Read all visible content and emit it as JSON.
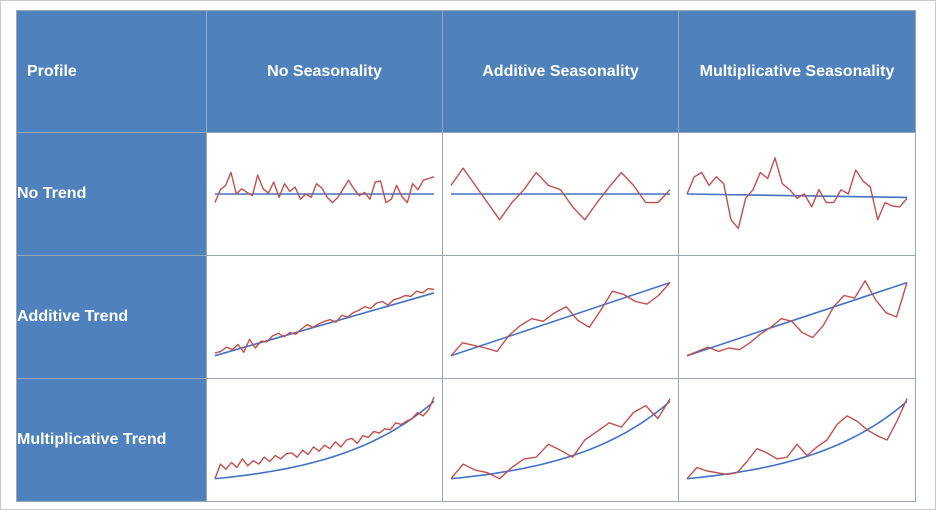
{
  "header": {
    "profile": "Profile",
    "columns": [
      "No Seasonality",
      "Additive Seasonality",
      "Multiplicative Seasonality"
    ]
  },
  "rows": [
    "No Trend",
    "Additive Trend",
    "Multiplicative Trend"
  ],
  "colors": {
    "header_bg": "#4f81bd",
    "trend_line": "#4472c4",
    "series_line": "#c0504d"
  },
  "chart_data": {
    "type": "line",
    "grid": false,
    "panels": [
      {
        "trend": "none",
        "seasonality": "none",
        "baseline": [
          0.5,
          0.5
        ],
        "values": [
          0.4,
          0.55,
          0.6,
          0.75,
          0.5,
          0.56,
          0.52,
          0.48,
          0.72,
          0.56,
          0.51,
          0.64,
          0.46,
          0.62,
          0.53,
          0.58,
          0.44,
          0.5,
          0.46,
          0.62,
          0.57,
          0.46,
          0.4,
          0.46,
          0.56,
          0.66,
          0.56,
          0.48,
          0.52,
          0.44,
          0.64,
          0.65,
          0.4,
          0.44,
          0.6,
          0.47,
          0.4,
          0.62,
          0.55,
          0.66,
          0.68,
          0.7
        ]
      },
      {
        "trend": "none",
        "seasonality": "additive",
        "baseline": [
          0.5,
          0.5
        ],
        "values": [
          0.6,
          0.8,
          0.6,
          0.4,
          0.2,
          0.4,
          0.55,
          0.75,
          0.6,
          0.55,
          0.35,
          0.2,
          0.4,
          0.58,
          0.75,
          0.6,
          0.4,
          0.4,
          0.55
        ]
      },
      {
        "trend": "none",
        "seasonality": "multiplicative",
        "baseline": [
          0.5,
          0.46
        ],
        "values": [
          0.5,
          0.7,
          0.75,
          0.6,
          0.7,
          0.62,
          0.2,
          0.1,
          0.45,
          0.55,
          0.75,
          0.68,
          0.92,
          0.62,
          0.55,
          0.45,
          0.5,
          0.35,
          0.55,
          0.4,
          0.4,
          0.55,
          0.5,
          0.78,
          0.65,
          0.58,
          0.2,
          0.4,
          0.36,
          0.35,
          0.45
        ]
      },
      {
        "trend": "additive",
        "seasonality": "none",
        "baseline": [
          0.05,
          0.78
        ],
        "values": [
          0.08,
          0.1,
          0.15,
          0.12,
          0.18,
          0.09,
          0.24,
          0.14,
          0.22,
          0.21,
          0.28,
          0.31,
          0.27,
          0.32,
          0.3,
          0.36,
          0.41,
          0.38,
          0.42,
          0.45,
          0.47,
          0.44,
          0.52,
          0.5,
          0.55,
          0.58,
          0.62,
          0.6,
          0.66,
          0.68,
          0.64,
          0.7,
          0.72,
          0.75,
          0.74,
          0.8,
          0.78,
          0.83,
          0.82
        ]
      },
      {
        "trend": "additive",
        "seasonality": "additive",
        "baseline": [
          0.05,
          0.9
        ],
        "values": [
          0.05,
          0.2,
          0.17,
          0.14,
          0.1,
          0.28,
          0.4,
          0.48,
          0.45,
          0.55,
          0.62,
          0.46,
          0.38,
          0.58,
          0.8,
          0.76,
          0.68,
          0.65,
          0.75,
          0.9
        ]
      },
      {
        "trend": "additive",
        "seasonality": "multiplicative",
        "baseline": [
          0.05,
          0.9
        ],
        "values": [
          0.05,
          0.1,
          0.15,
          0.1,
          0.14,
          0.12,
          0.2,
          0.3,
          0.38,
          0.48,
          0.45,
          0.32,
          0.26,
          0.4,
          0.62,
          0.75,
          0.72,
          0.92,
          0.7,
          0.55,
          0.5,
          0.9
        ]
      },
      {
        "trend": "multiplicative",
        "seasonality": "none",
        "baseline": "exponential",
        "values": [
          0.05,
          0.22,
          0.16,
          0.24,
          0.18,
          0.28,
          0.2,
          0.26,
          0.22,
          0.3,
          0.25,
          0.32,
          0.28,
          0.34,
          0.35,
          0.3,
          0.38,
          0.33,
          0.42,
          0.37,
          0.44,
          0.4,
          0.48,
          0.42,
          0.5,
          0.52,
          0.46,
          0.55,
          0.53,
          0.6,
          0.58,
          0.63,
          0.62,
          0.7,
          0.68,
          0.72,
          0.75,
          0.82,
          0.78,
          0.85,
          1.0
        ]
      },
      {
        "trend": "multiplicative",
        "seasonality": "additive",
        "baseline": "exponential",
        "values": [
          0.05,
          0.22,
          0.15,
          0.12,
          0.05,
          0.18,
          0.28,
          0.3,
          0.45,
          0.38,
          0.3,
          0.5,
          0.6,
          0.7,
          0.65,
          0.82,
          0.9,
          0.75,
          0.98
        ]
      },
      {
        "trend": "multiplicative",
        "seasonality": "multiplicative",
        "baseline": "exponential",
        "values": [
          0.05,
          0.18,
          0.14,
          0.12,
          0.1,
          0.12,
          0.25,
          0.4,
          0.35,
          0.28,
          0.3,
          0.45,
          0.32,
          0.42,
          0.5,
          0.68,
          0.78,
          0.72,
          0.62,
          0.55,
          0.5,
          0.72,
          0.98
        ]
      }
    ]
  }
}
